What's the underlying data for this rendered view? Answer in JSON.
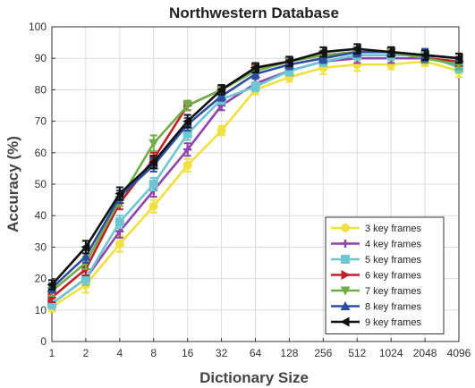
{
  "chart_data": {
    "type": "line",
    "title": "Northwestern Database",
    "xlabel": "Dictionary Size",
    "ylabel": "Accuracy (%)",
    "categories": [
      "1",
      "2",
      "4",
      "8",
      "16",
      "32",
      "64",
      "128",
      "256",
      "512",
      "1024",
      "2048",
      "4096"
    ],
    "ylim": [
      0,
      100
    ],
    "yticks": [
      "0",
      "10",
      "20",
      "30",
      "40",
      "50",
      "60",
      "70",
      "80",
      "90",
      "100"
    ],
    "grid": true,
    "legend_position": "bottom-right",
    "series": [
      {
        "name": "3 key frames",
        "color": "#f0e040",
        "marker": "circle",
        "values": [
          11,
          18,
          31,
          43,
          56,
          67,
          80,
          84,
          87,
          88,
          88,
          89,
          86
        ],
        "errors": [
          1.5,
          2.5,
          2.5,
          2,
          2,
          1.5,
          1.5,
          1.5,
          2,
          2,
          1.5,
          1.5,
          2
        ]
      },
      {
        "name": "4 key frames",
        "color": "#8e44ad",
        "marker": "plus",
        "values": [
          12,
          20,
          35,
          48,
          61,
          75,
          82,
          86,
          89,
          90,
          90,
          90,
          89
        ],
        "errors": [
          1.5,
          2,
          2,
          2,
          2,
          1.5,
          1.5,
          1.5,
          1.5,
          1.5,
          1.5,
          1.5,
          1.5
        ]
      },
      {
        "name": "5 key frames",
        "color": "#6ec6d0",
        "marker": "square",
        "values": [
          12,
          20,
          38,
          50,
          66,
          77,
          81,
          86,
          89,
          91,
          91,
          91,
          87
        ],
        "errors": [
          1.5,
          2,
          2,
          2,
          2,
          1.5,
          1.5,
          1.5,
          1.5,
          1.5,
          1.5,
          1.5,
          1.5
        ]
      },
      {
        "name": "6 key frames",
        "color": "#c0202a",
        "marker": "triangle-right",
        "values": [
          14,
          23,
          44,
          58,
          75,
          80,
          87,
          89,
          91,
          92,
          92,
          90,
          89
        ],
        "errors": [
          1.5,
          2,
          2,
          2,
          1.5,
          1.5,
          1.5,
          1.5,
          1.5,
          1.5,
          1.5,
          1.5,
          1.5
        ]
      },
      {
        "name": "7 key frames",
        "color": "#70ad47",
        "marker": "triangle-down",
        "values": [
          16,
          25,
          45,
          63,
          75,
          80,
          86,
          89,
          91,
          92,
          92,
          90,
          88
        ],
        "errors": [
          1.5,
          2,
          2,
          2.5,
          1.5,
          1.5,
          1.5,
          1.5,
          1.5,
          1.5,
          1.5,
          1.5,
          1.5
        ]
      },
      {
        "name": "8 key frames",
        "color": "#2d4ea0",
        "marker": "triangle-up",
        "values": [
          17,
          27,
          46,
          56,
          69,
          78,
          85,
          88,
          90,
          92,
          92,
          91,
          90
        ],
        "errors": [
          1.5,
          2,
          2,
          2,
          2,
          1.5,
          1.5,
          1.5,
          1.5,
          1.5,
          1.5,
          2,
          1.5
        ]
      },
      {
        "name": "9 key frames",
        "color": "#111111",
        "marker": "triangle-left",
        "values": [
          18,
          30,
          47,
          57,
          70,
          80,
          87,
          89,
          92,
          93,
          92,
          91,
          90
        ],
        "errors": [
          1.5,
          2,
          2,
          2,
          2,
          1.5,
          1.5,
          1.5,
          1.5,
          1.5,
          1.5,
          1.5,
          1.5
        ]
      }
    ]
  }
}
